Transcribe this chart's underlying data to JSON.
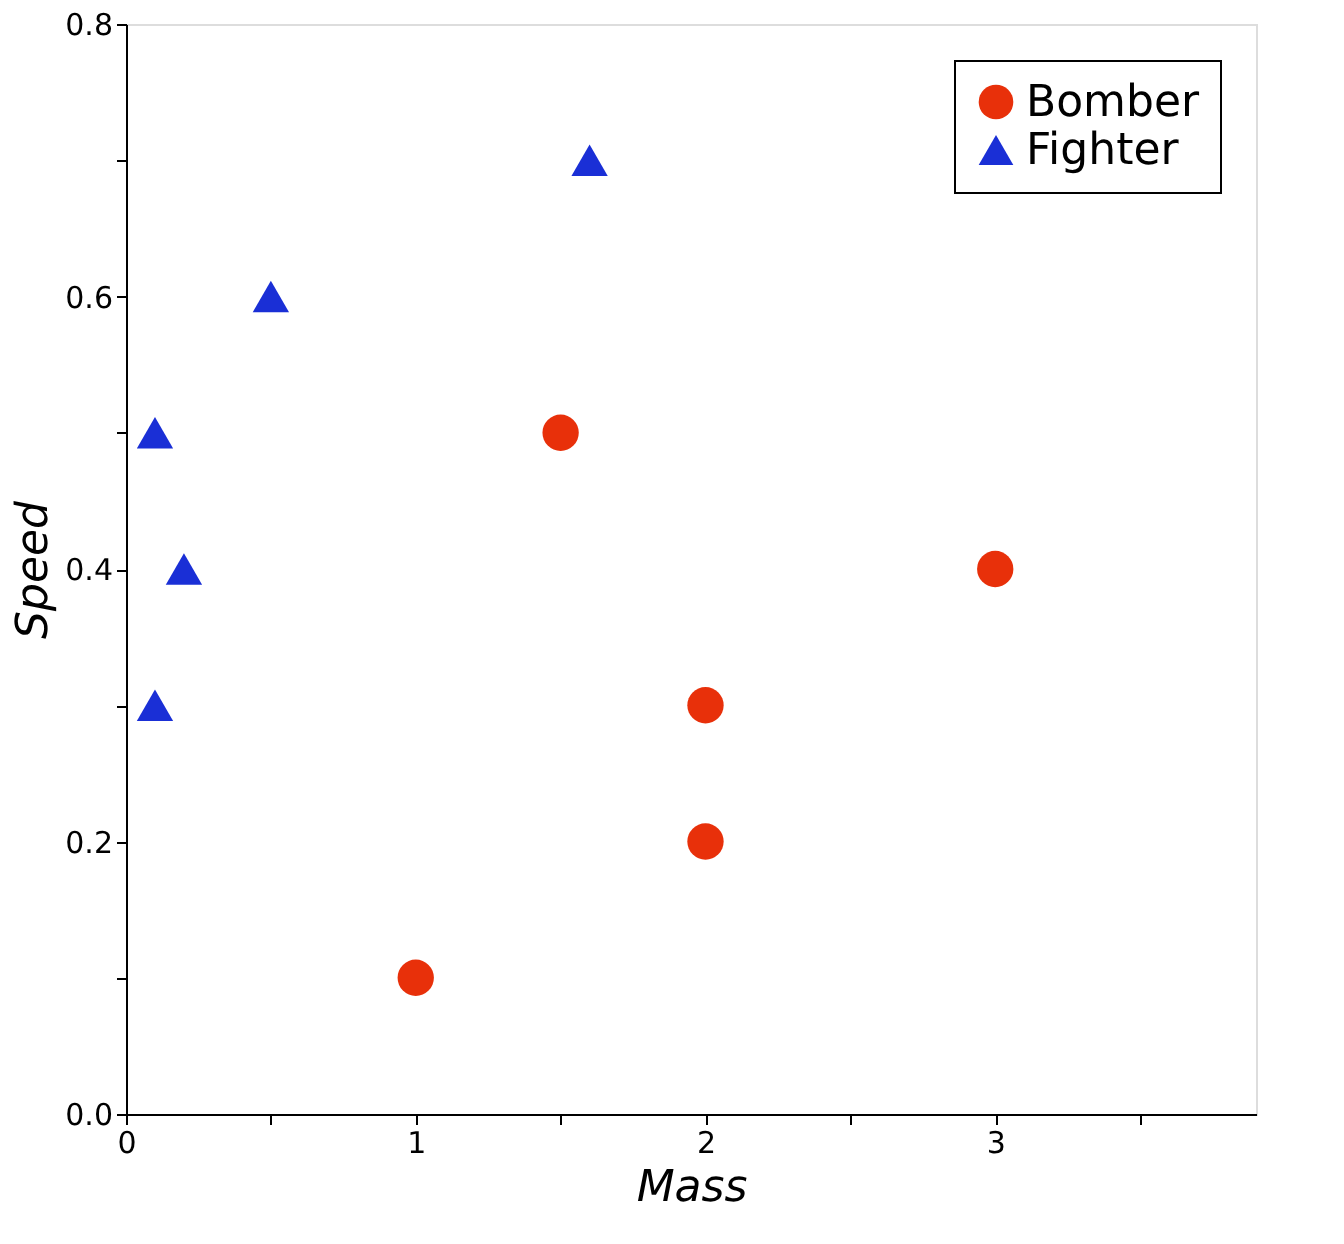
{
  "chart_data": {
    "type": "scatter",
    "xlabel": "Mass",
    "ylabel": "Speed",
    "xlim": [
      0,
      3.9
    ],
    "ylim": [
      0,
      0.8
    ],
    "xticks": [
      0,
      {
        "value": 0.5,
        "label": null
      },
      1,
      {
        "value": 1.5,
        "label": null
      },
      2,
      {
        "value": 2.5,
        "label": null
      },
      3,
      {
        "value": 3.5,
        "label": null
      }
    ],
    "yticks": [
      "0.0",
      {
        "value": 0.1,
        "label": null
      },
      0.2,
      {
        "value": 0.3,
        "label": null
      },
      0.4,
      {
        "value": 0.5,
        "label": null
      },
      0.6,
      {
        "value": 0.7,
        "label": null
      },
      0.8
    ],
    "legend": "top right",
    "grid": false,
    "series": [
      {
        "name": "Bomber",
        "color": "#e8300a",
        "marker": "circle",
        "x": [
          1,
          1.5,
          2,
          2,
          3
        ],
        "values": [
          0.1,
          0.5,
          0.3,
          0.2,
          0.4
        ]
      },
      {
        "name": "Fighter",
        "color": "#1a2fd6",
        "marker": "triangle",
        "x": [
          0.1,
          0.1,
          0.2,
          0.5,
          1.6
        ],
        "values": [
          0.3,
          0.5,
          0.4,
          0.6,
          0.7
        ]
      }
    ]
  }
}
